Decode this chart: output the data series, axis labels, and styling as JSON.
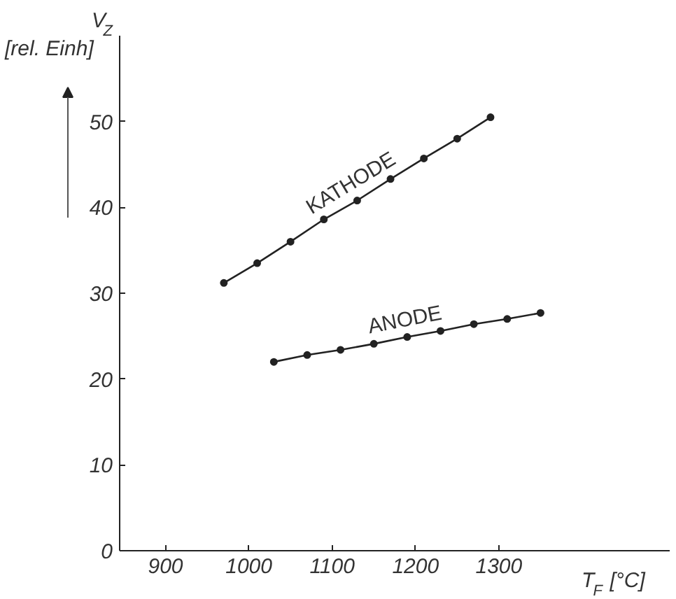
{
  "chart_data": {
    "type": "line",
    "xlabel": "T$_{F}$ [°C]",
    "ylabel": "V$_{Z}$ [rel. Einh]",
    "series": [
      {
        "name": "KATHODE",
        "color": "#222222",
        "x": [
          970,
          1010,
          1050,
          1090,
          1130,
          1170,
          1210,
          1250,
          1290
        ],
        "values": [
          31.2,
          33.5,
          36.0,
          38.6,
          40.8,
          43.3,
          45.7,
          48.0,
          50.5
        ]
      },
      {
        "name": "ANODE",
        "color": "#222222",
        "x": [
          1030,
          1070,
          1110,
          1150,
          1190,
          1230,
          1270,
          1310,
          1350
        ],
        "values": [
          22.0,
          22.8,
          23.4,
          24.1,
          24.9,
          25.6,
          26.4,
          27.0,
          27.7
        ]
      }
    ],
    "xlim": [
      845,
      1505
    ],
    "ylim": [
      0,
      60
    ],
    "xticks": [
      900,
      1000,
      1100,
      1200,
      1300
    ],
    "yticks": [
      0,
      10,
      20,
      30,
      40,
      50
    ],
    "grid": false,
    "legend": false,
    "marker": "circle",
    "line_style": "solid"
  }
}
